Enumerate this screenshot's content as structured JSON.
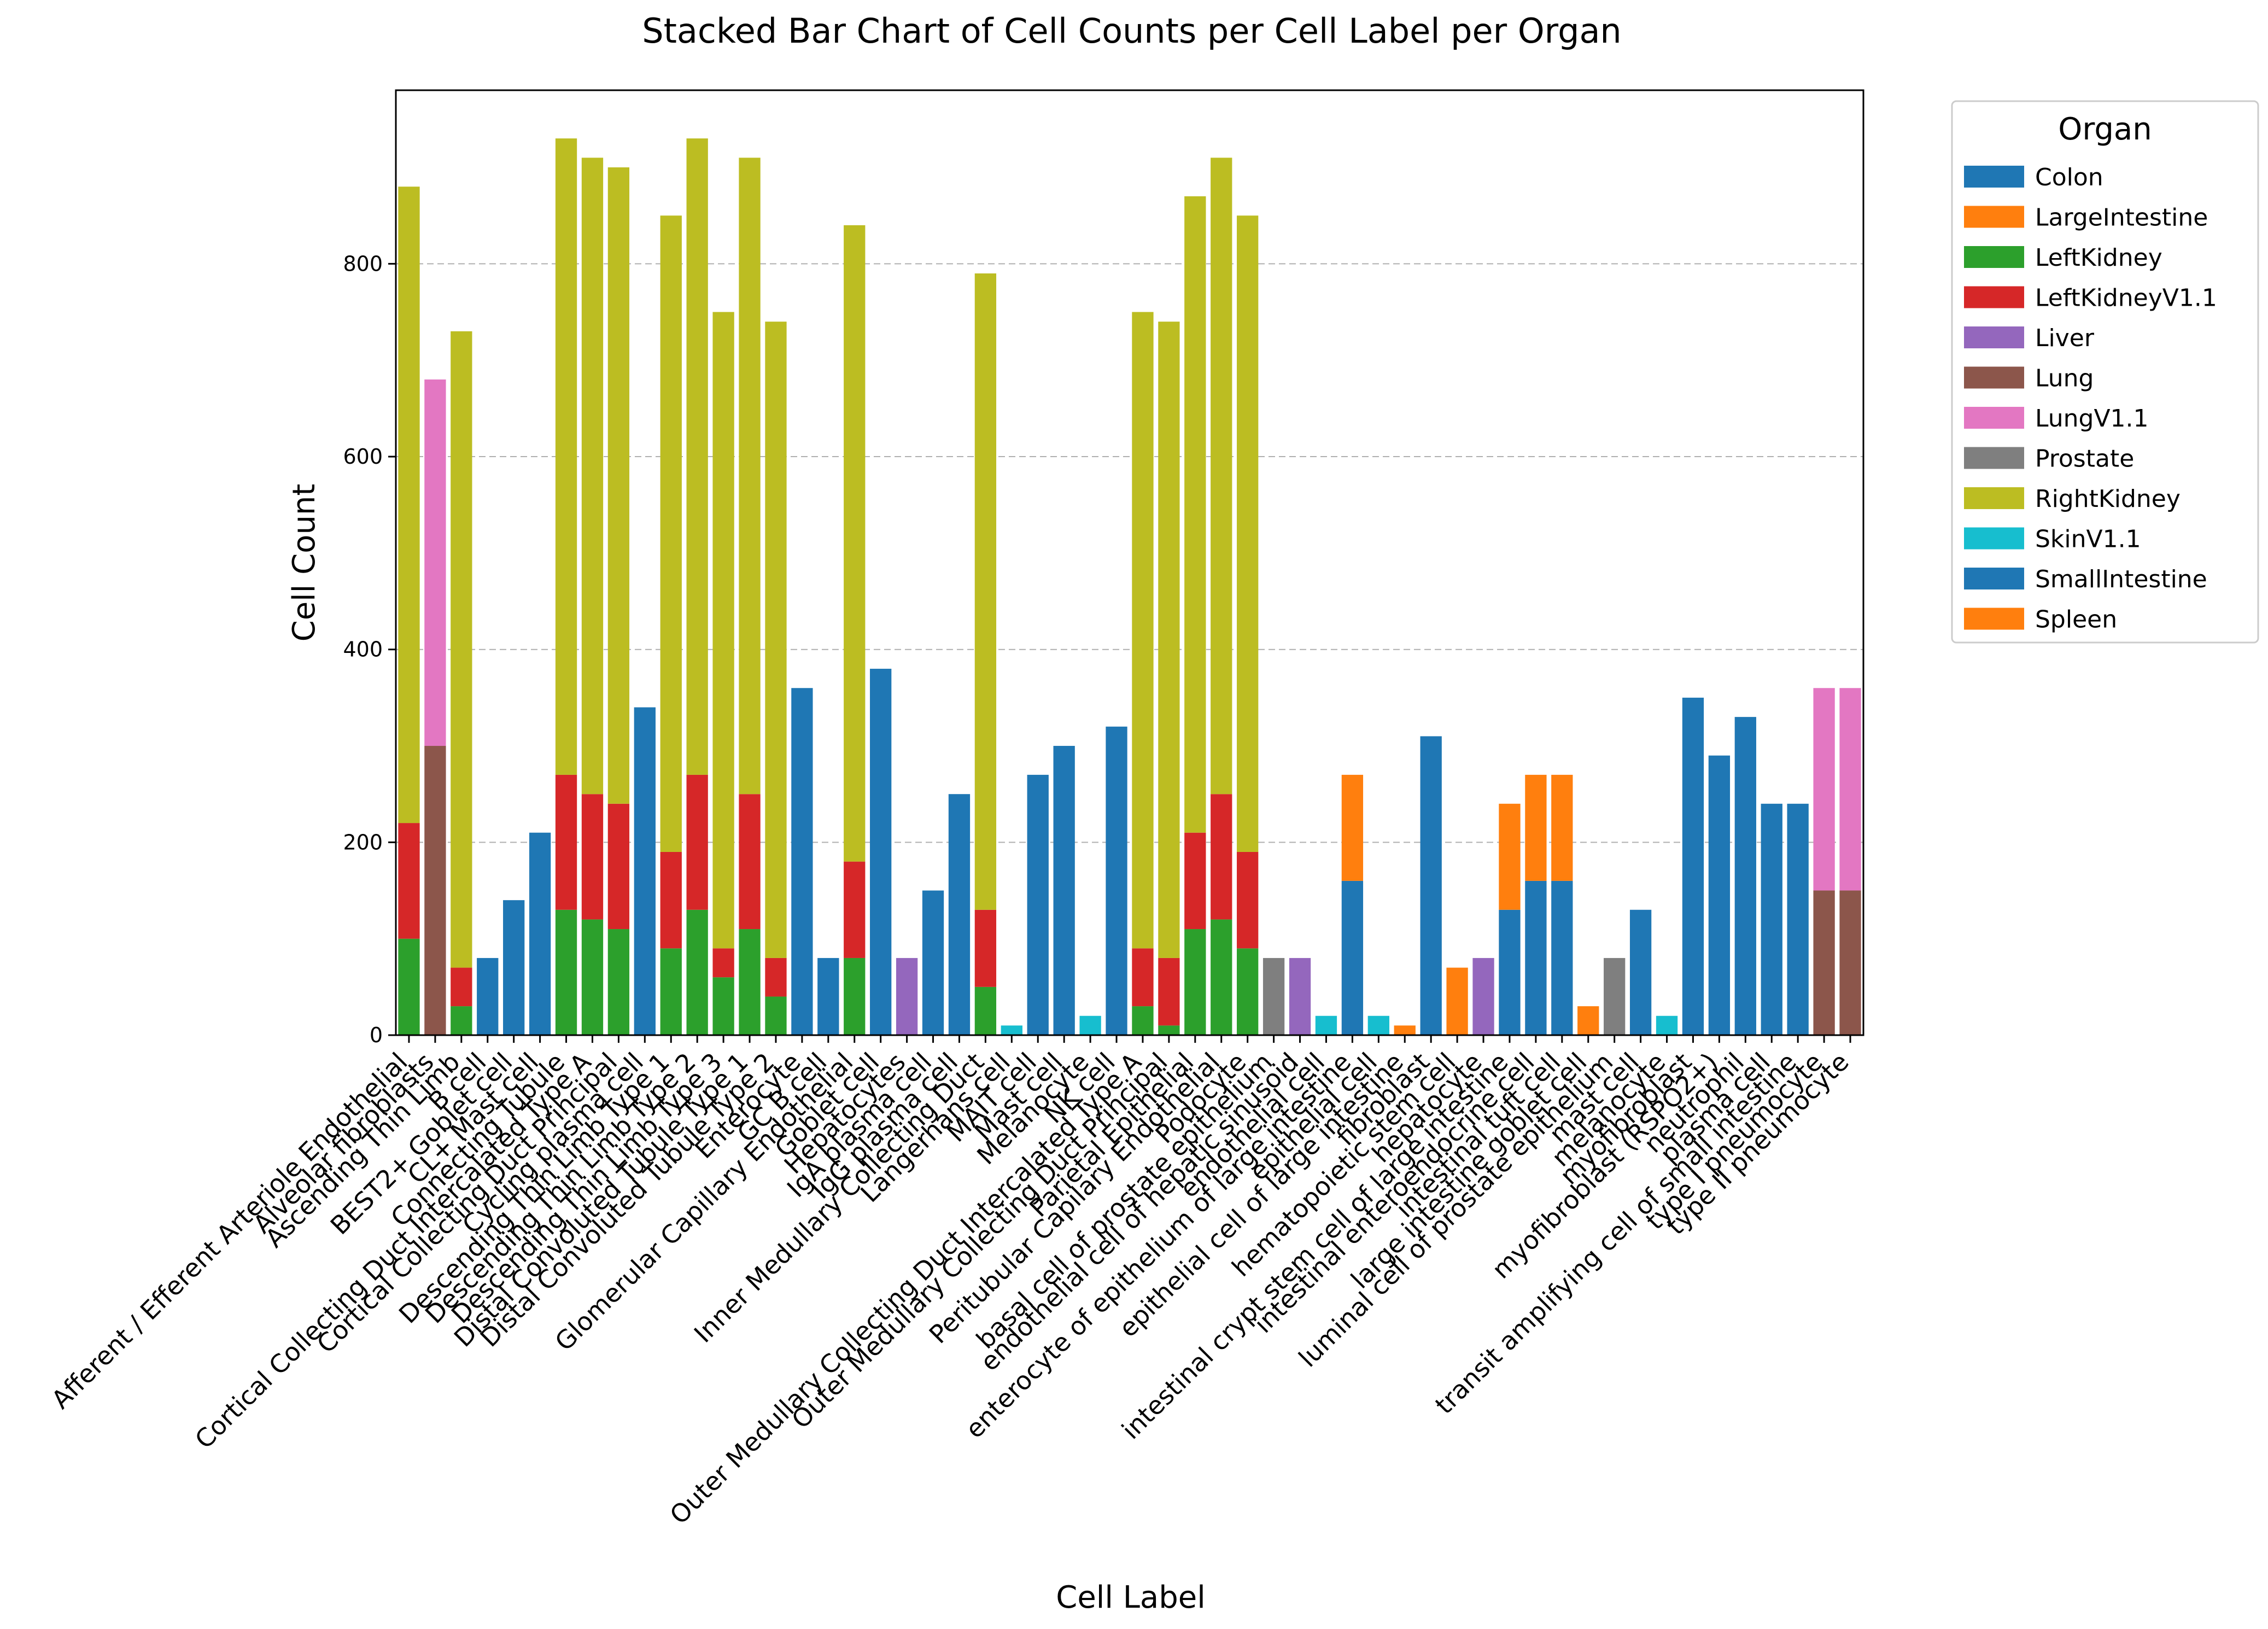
{
  "chart_data": {
    "type": "bar",
    "stacked": true,
    "title": "Stacked Bar Chart of Cell Counts per Cell Label per Organ",
    "xlabel": "Cell Label",
    "ylabel": "Cell Count",
    "ylim": [
      0,
      980
    ],
    "yticks": [
      "0",
      "200",
      "400",
      "600",
      "800"
    ],
    "grid": "horizontal dashed",
    "legend_title": "Organ",
    "legend_position": "outside right, top",
    "categories": [
      "Afferent / Efferent Arteriole Endothelial",
      "Alveolar fibroblasts",
      "Ascending Thin Limb",
      "B cell",
      "BEST2+ Goblet cell",
      "CL+ Mast cell",
      "Connecting Tubule",
      "Cortical Collecting Duct Intercalated Type A",
      "Cortical Collecting Duct Principal",
      "Cycling plasma cell",
      "Descending Thin Limb Type 1",
      "Descending Thin Limb Type 2",
      "Descending Thin Limb Type 3",
      "Distal Convoluted Tubule Type 1",
      "Distal Convoluted Tubule Type 2",
      "Enterocyte",
      "GC B cell",
      "Glomerular Capillary Endothelial",
      "Goblet cell",
      "Hepatocytes",
      "IgA plasma cell",
      "IgG plasma cell",
      "Inner Medullary Collecting Duct",
      "Langerhans cell",
      "MAIT cell",
      "Mast cell",
      "Melanocyte",
      "NK cell",
      "Outer Medullary Collecting Duct Intercalated Type A",
      "Outer Medullary Collecting Duct Principal",
      "Parietal Epithelial",
      "Peritubular Capilary Endothelial",
      "Podocyte",
      "basal cell of prostate epithelium",
      "endothelial cell of hepatic sinusoid",
      "endothelial cell",
      "enterocyte of epithelium of large intestine",
      "epithelial cell",
      "epithelial cell of large intestine",
      "fibroblast",
      "hematopoietic stem cell",
      "hepatocyte",
      "intestinal crypt stem cell of large intestine",
      "intestinal enteroendocrine cell",
      "intestinal tuft cell",
      "large intestine goblet cell",
      "luminal cell of prostate epithelium",
      "mast cell",
      "melanocyte",
      "myofibroblast",
      "myofibroblast (RSPO2+)",
      "neutrophil",
      "plasma cell",
      "transit amplifying cell of small intestine",
      "type I pneumocyte",
      "type II pneumocyte"
    ],
    "series": [
      {
        "name": "Colon",
        "color": "#1f77b4",
        "values": [
          0,
          0,
          0,
          0,
          0,
          0,
          0,
          0,
          0,
          0,
          0,
          0,
          0,
          0,
          0,
          0,
          0,
          0,
          0,
          0,
          0,
          0,
          0,
          0,
          0,
          0,
          0,
          0,
          0,
          0,
          0,
          0,
          0,
          0,
          0,
          0,
          160,
          0,
          0,
          0,
          0,
          0,
          130,
          160,
          160,
          0,
          0,
          0,
          0,
          0,
          0,
          0,
          0,
          0,
          0,
          0
        ]
      },
      {
        "name": "LargeIntestine",
        "color": "#ff7f0e",
        "values": [
          0,
          0,
          0,
          0,
          0,
          0,
          0,
          0,
          0,
          0,
          0,
          0,
          0,
          0,
          0,
          0,
          0,
          0,
          0,
          0,
          0,
          0,
          0,
          0,
          0,
          0,
          0,
          0,
          0,
          0,
          0,
          0,
          0,
          0,
          0,
          0,
          110,
          0,
          10,
          0,
          0,
          0,
          110,
          110,
          110,
          0,
          0,
          0,
          0,
          0,
          0,
          0,
          0,
          0,
          0,
          0
        ]
      },
      {
        "name": "LeftKidney",
        "color": "#2ca02c",
        "values": [
          100,
          0,
          30,
          0,
          0,
          0,
          130,
          120,
          110,
          0,
          90,
          130,
          60,
          110,
          40,
          0,
          0,
          80,
          0,
          0,
          0,
          0,
          50,
          0,
          0,
          0,
          0,
          0,
          30,
          10,
          110,
          120,
          90,
          0,
          0,
          0,
          0,
          0,
          0,
          0,
          0,
          0,
          0,
          0,
          0,
          0,
          0,
          0,
          0,
          0,
          0,
          0,
          0,
          0,
          0,
          0
        ]
      },
      {
        "name": "LeftKidneyV1.1",
        "color": "#d62728",
        "values": [
          120,
          0,
          40,
          0,
          0,
          0,
          140,
          130,
          130,
          0,
          100,
          140,
          30,
          140,
          40,
          0,
          0,
          100,
          0,
          0,
          0,
          0,
          80,
          0,
          0,
          0,
          0,
          0,
          60,
          70,
          100,
          130,
          100,
          0,
          0,
          0,
          0,
          0,
          0,
          0,
          0,
          0,
          0,
          0,
          0,
          0,
          0,
          0,
          0,
          0,
          0,
          0,
          0,
          0,
          0,
          0
        ]
      },
      {
        "name": "Liver",
        "color": "#9467bd",
        "values": [
          0,
          0,
          0,
          0,
          0,
          0,
          0,
          0,
          0,
          0,
          0,
          0,
          0,
          0,
          0,
          0,
          0,
          0,
          0,
          80,
          0,
          0,
          0,
          0,
          0,
          0,
          0,
          0,
          0,
          0,
          0,
          0,
          0,
          0,
          80,
          0,
          0,
          0,
          0,
          0,
          0,
          80,
          0,
          0,
          0,
          0,
          0,
          0,
          0,
          0,
          0,
          0,
          0,
          0,
          0,
          0
        ]
      },
      {
        "name": "Lung",
        "color": "#8c564b",
        "values": [
          0,
          300,
          0,
          0,
          0,
          0,
          0,
          0,
          0,
          0,
          0,
          0,
          0,
          0,
          0,
          0,
          0,
          0,
          0,
          0,
          0,
          0,
          0,
          0,
          0,
          0,
          0,
          0,
          0,
          0,
          0,
          0,
          0,
          0,
          0,
          0,
          0,
          0,
          0,
          0,
          0,
          0,
          0,
          0,
          0,
          0,
          0,
          0,
          0,
          0,
          0,
          0,
          0,
          0,
          150,
          150
        ]
      },
      {
        "name": "LungV1.1",
        "color": "#e377c2",
        "values": [
          0,
          380,
          0,
          0,
          0,
          0,
          0,
          0,
          0,
          0,
          0,
          0,
          0,
          0,
          0,
          0,
          0,
          0,
          0,
          0,
          0,
          0,
          0,
          0,
          0,
          0,
          0,
          0,
          0,
          0,
          0,
          0,
          0,
          0,
          0,
          0,
          0,
          0,
          0,
          0,
          0,
          0,
          0,
          0,
          0,
          0,
          0,
          0,
          0,
          0,
          0,
          0,
          0,
          0,
          210,
          210
        ]
      },
      {
        "name": "Prostate",
        "color": "#7f7f7f",
        "values": [
          0,
          0,
          0,
          0,
          0,
          0,
          0,
          0,
          0,
          0,
          0,
          0,
          0,
          0,
          0,
          0,
          0,
          0,
          0,
          0,
          0,
          0,
          0,
          0,
          0,
          0,
          0,
          0,
          0,
          0,
          0,
          0,
          0,
          80,
          0,
          0,
          0,
          0,
          0,
          0,
          0,
          0,
          0,
          0,
          0,
          0,
          80,
          0,
          0,
          0,
          0,
          0,
          0,
          0,
          0,
          0
        ]
      },
      {
        "name": "RightKidney",
        "color": "#bcbd22",
        "values": [
          660,
          0,
          660,
          0,
          0,
          0,
          660,
          660,
          660,
          0,
          660,
          660,
          660,
          660,
          660,
          0,
          0,
          660,
          0,
          0,
          0,
          0,
          660,
          0,
          0,
          0,
          0,
          0,
          660,
          660,
          660,
          660,
          660,
          0,
          0,
          0,
          0,
          0,
          0,
          0,
          0,
          0,
          0,
          0,
          0,
          0,
          0,
          0,
          0,
          0,
          0,
          0,
          0,
          0,
          0,
          0
        ]
      },
      {
        "name": "SkinV1.1",
        "color": "#17becf",
        "values": [
          0,
          0,
          0,
          0,
          0,
          0,
          0,
          0,
          0,
          0,
          0,
          0,
          0,
          0,
          0,
          0,
          0,
          0,
          0,
          0,
          0,
          0,
          0,
          10,
          0,
          0,
          20,
          0,
          0,
          0,
          0,
          0,
          0,
          0,
          0,
          20,
          0,
          20,
          0,
          0,
          0,
          0,
          0,
          0,
          0,
          0,
          0,
          0,
          20,
          0,
          0,
          0,
          0,
          0,
          0,
          0
        ]
      },
      {
        "name": "SmallIntestine",
        "color": "#1f77b4",
        "values": [
          0,
          0,
          0,
          80,
          140,
          210,
          0,
          0,
          0,
          340,
          0,
          0,
          0,
          0,
          0,
          360,
          80,
          0,
          380,
          0,
          150,
          250,
          0,
          0,
          270,
          300,
          0,
          320,
          0,
          0,
          0,
          0,
          0,
          0,
          0,
          0,
          0,
          0,
          0,
          310,
          0,
          0,
          0,
          0,
          0,
          0,
          0,
          130,
          0,
          350,
          290,
          330,
          240,
          240,
          0,
          0
        ]
      },
      {
        "name": "Spleen",
        "color": "#ff7f0e",
        "values": [
          0,
          0,
          0,
          0,
          0,
          0,
          0,
          0,
          0,
          0,
          0,
          0,
          0,
          0,
          0,
          0,
          0,
          0,
          0,
          0,
          0,
          0,
          0,
          0,
          0,
          0,
          0,
          0,
          0,
          0,
          0,
          0,
          0,
          0,
          0,
          0,
          0,
          0,
          0,
          0,
          70,
          0,
          0,
          0,
          0,
          30,
          0,
          0,
          0,
          0,
          0,
          0,
          0,
          0,
          0,
          0
        ]
      }
    ]
  }
}
